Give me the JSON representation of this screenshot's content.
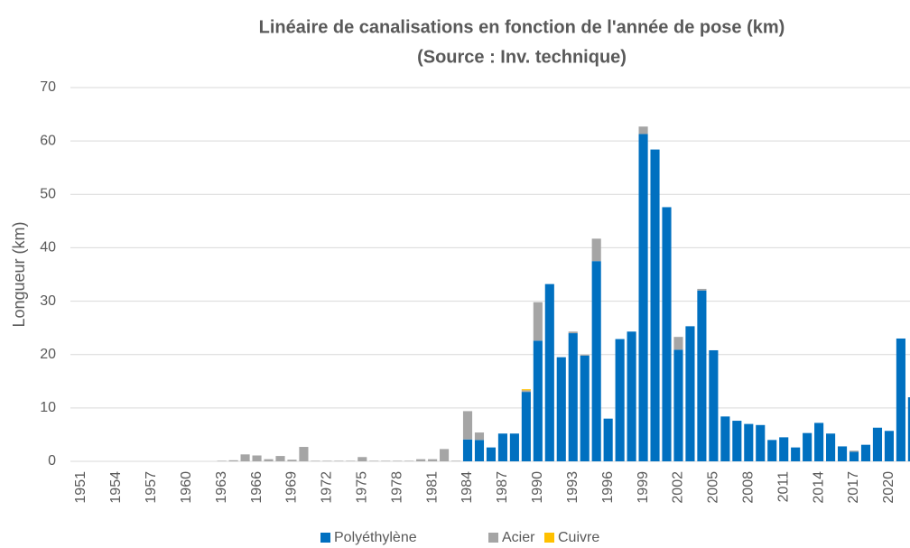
{
  "chart_data": {
    "type": "stacked_bar",
    "title": "Linéaire de canalisations en fonction de l'année de pose (km)",
    "subtitle": "(Source : Inv. technique)",
    "y_label": "Longueur (km)",
    "categories": [
      "1951",
      null,
      null,
      "1954",
      null,
      null,
      "1957",
      null,
      null,
      "1960",
      null,
      null,
      "1963",
      null,
      null,
      "1966",
      null,
      null,
      "1969",
      null,
      null,
      "1972",
      null,
      null,
      "1975",
      null,
      null,
      "1978",
      null,
      null,
      "1981",
      null,
      null,
      "1984",
      null,
      null,
      "1987",
      null,
      null,
      "1990",
      null,
      null,
      "1993",
      null,
      null,
      "1996",
      null,
      null,
      "1999",
      null,
      null,
      "2002",
      null,
      null,
      "2005",
      null,
      null,
      "2008",
      null,
      null,
      "2011",
      null,
      null,
      "2014",
      null,
      null,
      "2017",
      null,
      null,
      "2020",
      null,
      null
    ],
    "series": [
      {
        "name": "Polyéthylène",
        "color": "#0070C0",
        "values": [
          0,
          0,
          0,
          0,
          0,
          0,
          0,
          0,
          0,
          0,
          0,
          0,
          0,
          0,
          0,
          0,
          0,
          0,
          0,
          0,
          0,
          0,
          0,
          0,
          0,
          0,
          0,
          0,
          0,
          0,
          0,
          0,
          0,
          4.1,
          4.0,
          2.6,
          5.2,
          5.2,
          13.0,
          22.6,
          33.2,
          19.5,
          24.0,
          19.8,
          37.5,
          8.0,
          22.9,
          24.3,
          61.3,
          58.4,
          47.6,
          20.9,
          25.3,
          32.0,
          20.8,
          8.4,
          7.6,
          7.0,
          6.8,
          4.0,
          4.5,
          2.6,
          5.3,
          7.2,
          5.2,
          2.8,
          1.8,
          3.1,
          6.3,
          5.7,
          23.0,
          12.0
        ]
      },
      {
        "name": "Acier",
        "color": "#A5A5A5",
        "values": [
          0,
          0,
          0,
          0,
          0,
          0,
          0,
          0,
          0,
          0,
          0,
          0,
          0.1,
          0.2,
          1.3,
          1.1,
          0.4,
          1.0,
          0.3,
          2.7,
          0.1,
          0.1,
          0.1,
          0.1,
          0.8,
          0.1,
          0.1,
          0.1,
          0.1,
          0.4,
          0.4,
          2.3,
          0.1,
          5.3,
          1.4,
          0,
          0,
          0,
          0.3,
          7.2,
          0,
          0,
          0.3,
          0.2,
          4.2,
          0,
          0,
          0,
          1.4,
          0,
          0,
          2.4,
          0,
          0.3,
          0,
          0,
          0,
          0,
          0,
          0,
          0,
          0,
          0,
          0,
          0,
          0,
          0.2,
          0,
          0,
          0,
          0,
          0
        ]
      },
      {
        "name": "Cuivre",
        "color": "#FFC000",
        "values": [
          0,
          0,
          0,
          0,
          0,
          0,
          0,
          0,
          0,
          0,
          0,
          0,
          0,
          0,
          0,
          0,
          0,
          0,
          0,
          0,
          0,
          0,
          0,
          0,
          0,
          0,
          0,
          0,
          0,
          0,
          0,
          0,
          0,
          0,
          0,
          0,
          0,
          0,
          0.2,
          0,
          0,
          0,
          0,
          0,
          0,
          0,
          0,
          0,
          0,
          0,
          0,
          0,
          0,
          0,
          0,
          0,
          0,
          0,
          0,
          0,
          0,
          0,
          0,
          0,
          0,
          0,
          0,
          0,
          0,
          0,
          0,
          0
        ]
      }
    ],
    "ylim": [
      0,
      70
    ],
    "yticks": [
      0,
      10,
      20,
      30,
      40,
      50,
      60,
      70
    ],
    "grid": true,
    "legend": "bottom"
  }
}
